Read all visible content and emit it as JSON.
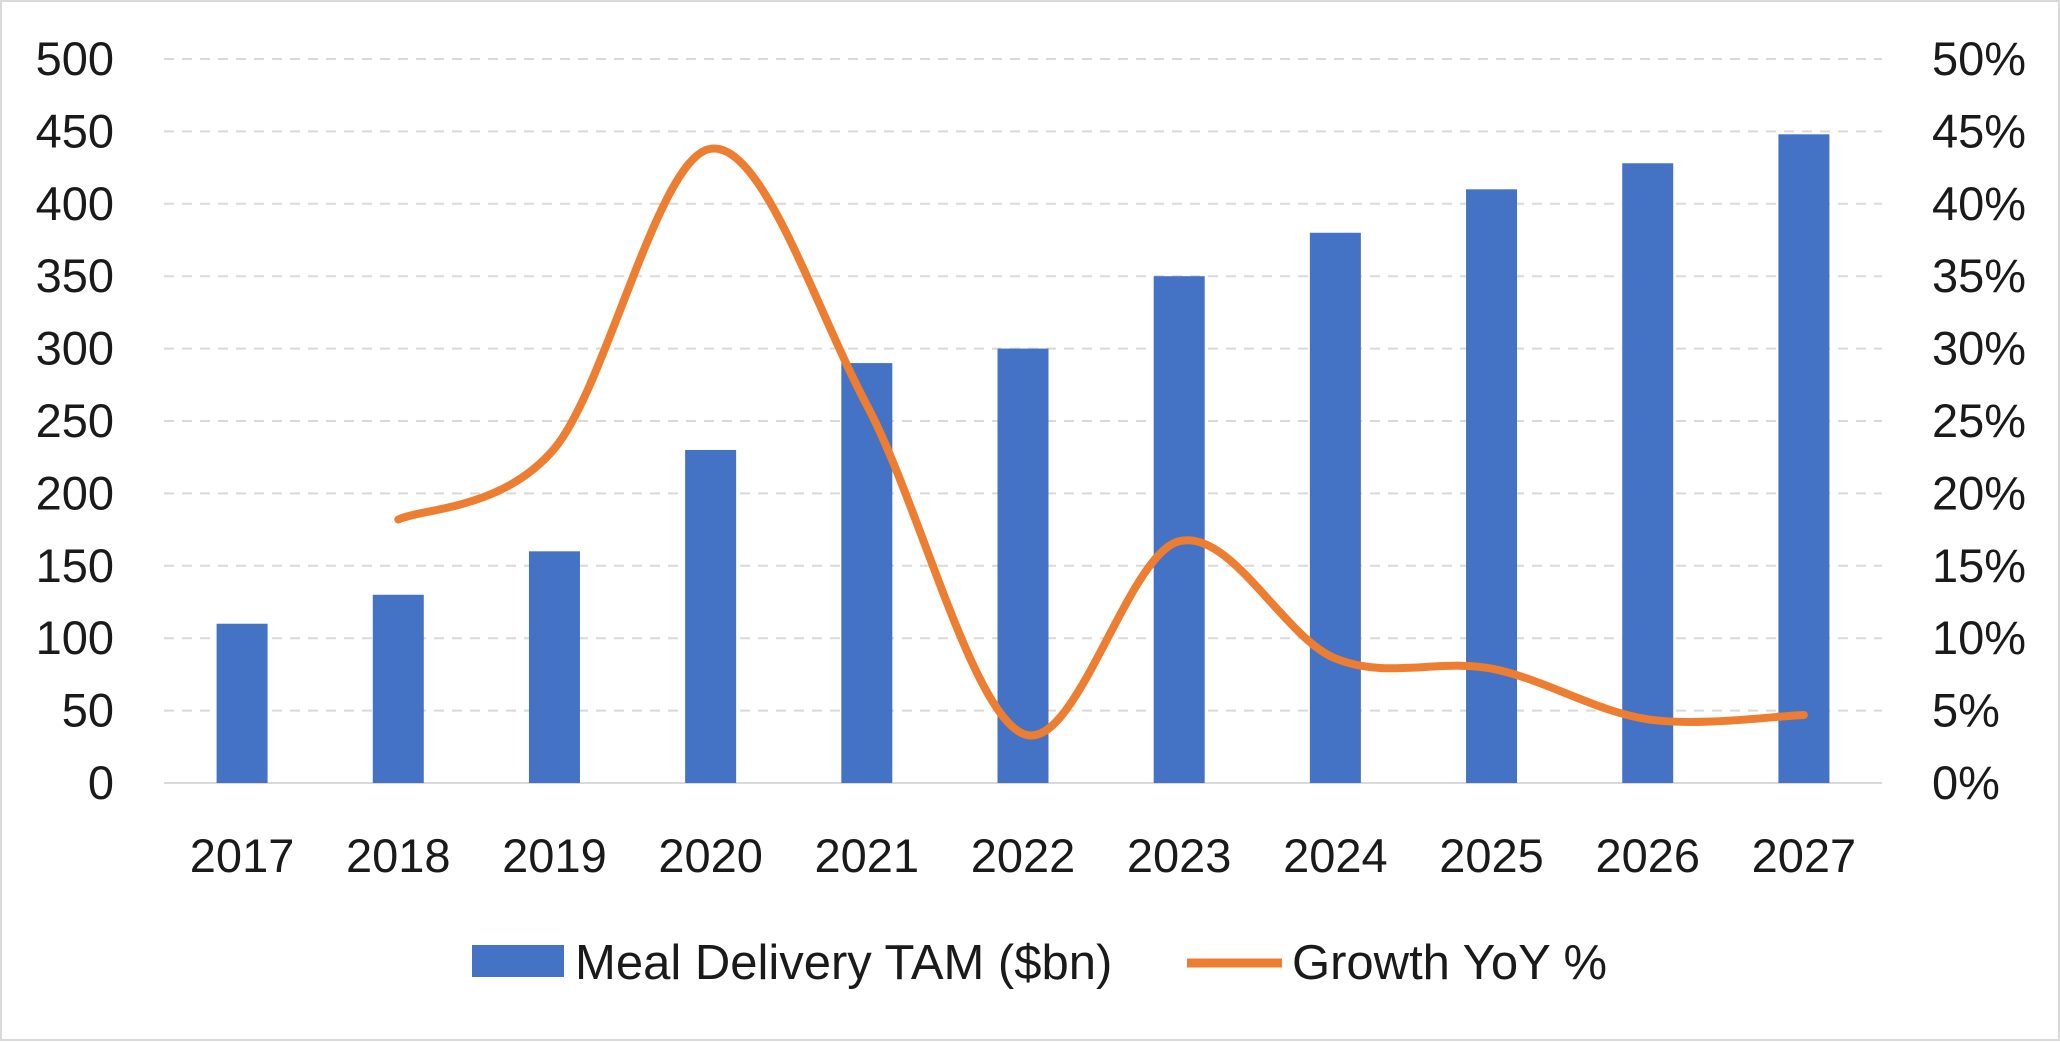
{
  "chart_data": {
    "type": "bar",
    "categories": [
      "2017",
      "2018",
      "2019",
      "2020",
      "2021",
      "2022",
      "2023",
      "2024",
      "2025",
      "2026",
      "2027"
    ],
    "series": [
      {
        "name": "Meal Delivery TAM ($bn)",
        "type": "bar",
        "axis": "left",
        "color": "#4472C4",
        "values": [
          110,
          130,
          160,
          230,
          290,
          300,
          350,
          380,
          410,
          428,
          448
        ]
      },
      {
        "name": "Growth YoY %",
        "type": "line",
        "smooth": true,
        "axis": "right",
        "color": "#ED7D31",
        "values": [
          null,
          18.2,
          23.1,
          43.8,
          26.1,
          3.4,
          16.7,
          8.6,
          7.9,
          4.4,
          4.7
        ]
      }
    ],
    "y_left": {
      "ylim": [
        0,
        500
      ],
      "ticks": [
        "0",
        "50",
        "100",
        "150",
        "200",
        "250",
        "300",
        "350",
        "400",
        "450",
        "500"
      ]
    },
    "y_right": {
      "ylim": [
        0,
        50
      ],
      "ticks": [
        "0%",
        "5%",
        "10%",
        "15%",
        "20%",
        "25%",
        "30%",
        "35%",
        "40%",
        "45%",
        "50%"
      ]
    },
    "grid": "horizontal-dashed",
    "legend_position": "bottom",
    "title": "",
    "xlabel": "",
    "ylabel": ""
  }
}
